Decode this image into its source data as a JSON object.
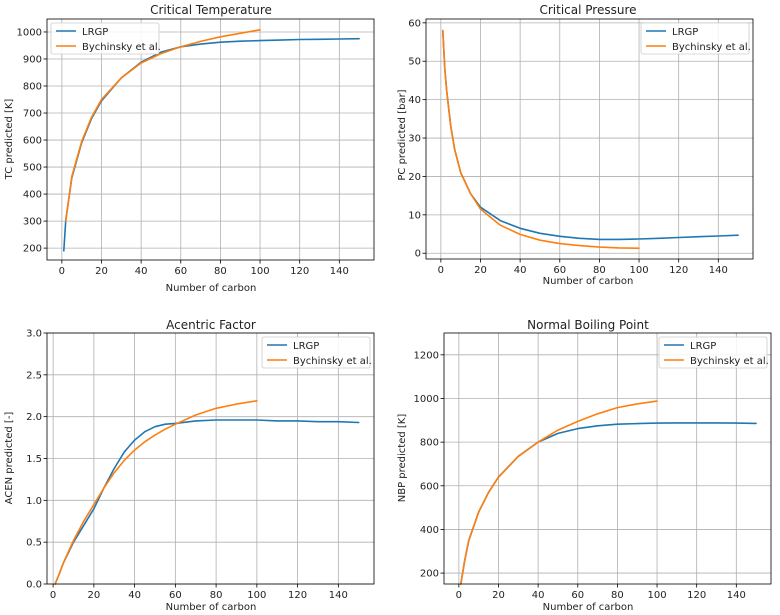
{
  "figure": {
    "title": ""
  },
  "colors": {
    "LRGP": "#1f77b4",
    "Bychinsky et al.": "#ff7f0e",
    "grid": "#b0b0b0",
    "axis": "#000000"
  },
  "chart_data": [
    {
      "id": "tc",
      "type": "line",
      "title": "Critical Temperature",
      "xlabel": "Number of carbon",
      "ylabel": "TC predicted [K]",
      "xlim": [
        -7.5,
        157.5
      ],
      "ylim": [
        156,
        1048
      ],
      "xticks": [
        0,
        20,
        40,
        60,
        80,
        100,
        120,
        140
      ],
      "yticks": [
        200,
        300,
        400,
        500,
        600,
        700,
        800,
        900,
        1000
      ],
      "grid": true,
      "legend": "upper-left",
      "series": [
        {
          "name": "LRGP",
          "x": [
            1,
            2,
            5,
            10,
            15,
            20,
            30,
            40,
            50,
            60,
            70,
            80,
            90,
            100,
            110,
            120,
            130,
            140,
            150
          ],
          "y": [
            190,
            305,
            460,
            590,
            680,
            745,
            830,
            888,
            925,
            945,
            955,
            962,
            966,
            968,
            970,
            972,
            973,
            974,
            975
          ]
        },
        {
          "name": "Bychinsky et al.",
          "x": [
            2,
            5,
            10,
            15,
            20,
            30,
            40,
            50,
            60,
            70,
            80,
            90,
            100
          ],
          "y": [
            300,
            465,
            595,
            685,
            750,
            830,
            885,
            920,
            945,
            965,
            982,
            995,
            1008
          ]
        }
      ]
    },
    {
      "id": "pc",
      "type": "line",
      "title": "Critical Pressure",
      "xlabel": "Number of carbon",
      "ylabel": "PC predicted [bar]",
      "xlim": [
        -7.5,
        157.5
      ],
      "ylim": [
        -1.5,
        61
      ],
      "xticks": [
        0,
        20,
        40,
        60,
        80,
        100,
        120,
        140
      ],
      "yticks": [
        0,
        10,
        20,
        30,
        40,
        50,
        60
      ],
      "grid": true,
      "legend": "upper-right",
      "series": [
        {
          "name": "LRGP",
          "x": [
            1,
            2,
            3,
            5,
            7,
            10,
            15,
            20,
            30,
            40,
            50,
            60,
            70,
            80,
            90,
            100,
            110,
            120,
            130,
            140,
            150
          ],
          "y": [
            58,
            48,
            42,
            33,
            27,
            21,
            15.5,
            12,
            8.5,
            6.5,
            5.2,
            4.4,
            3.9,
            3.6,
            3.6,
            3.7,
            3.9,
            4.1,
            4.3,
            4.5,
            4.7
          ]
        },
        {
          "name": "Bychinsky et al.",
          "x": [
            1,
            2,
            3,
            5,
            7,
            10,
            15,
            20,
            30,
            40,
            50,
            60,
            70,
            80,
            90,
            100
          ],
          "y": [
            58,
            48,
            42,
            33,
            27,
            21,
            15.5,
            11.5,
            7.3,
            4.9,
            3.4,
            2.5,
            2.0,
            1.6,
            1.4,
            1.3
          ]
        }
      ]
    },
    {
      "id": "acen",
      "type": "line",
      "title": "Acentric Factor",
      "xlabel": "Number of carbon",
      "ylabel": "ACEN predicted [-]",
      "xlim": [
        -3,
        157.5
      ],
      "ylim": [
        0,
        3
      ],
      "xticks": [
        0,
        20,
        40,
        60,
        80,
        100,
        120,
        140
      ],
      "yticks": [
        0.0,
        0.5,
        1.0,
        1.5,
        2.0,
        2.5,
        3.0
      ],
      "ytick_labels": [
        "0.0",
        "0.5",
        "1.0",
        "1.5",
        "2.0",
        "2.5",
        "3.0"
      ],
      "grid": true,
      "legend": "upper-right",
      "series": [
        {
          "name": "LRGP",
          "x": [
            1,
            3,
            5,
            10,
            15,
            20,
            25,
            30,
            35,
            40,
            45,
            50,
            55,
            60,
            70,
            80,
            90,
            100,
            110,
            120,
            130,
            140,
            150
          ],
          "y": [
            0.0,
            0.12,
            0.25,
            0.5,
            0.7,
            0.9,
            1.15,
            1.38,
            1.58,
            1.72,
            1.82,
            1.88,
            1.91,
            1.92,
            1.95,
            1.96,
            1.96,
            1.96,
            1.95,
            1.95,
            1.94,
            1.94,
            1.93
          ]
        },
        {
          "name": "Bychinsky et al.",
          "x": [
            1,
            3,
            5,
            10,
            15,
            20,
            25,
            30,
            35,
            40,
            45,
            50,
            55,
            60,
            70,
            80,
            90,
            100
          ],
          "y": [
            0.0,
            0.12,
            0.25,
            0.52,
            0.75,
            0.95,
            1.15,
            1.33,
            1.48,
            1.6,
            1.7,
            1.78,
            1.85,
            1.91,
            2.02,
            2.1,
            2.15,
            2.19
          ]
        }
      ]
    },
    {
      "id": "nbp",
      "type": "line",
      "title": "Normal Boiling Point",
      "xlabel": "Number of carbon",
      "ylabel": "NBP predicted [K]",
      "xlim": [
        -7.5,
        157.5
      ],
      "ylim": [
        150,
        1300
      ],
      "xticks": [
        0,
        20,
        40,
        60,
        80,
        100,
        120,
        140
      ],
      "yticks": [
        200,
        400,
        600,
        800,
        1000,
        1200
      ],
      "grid": true,
      "legend": "upper-right",
      "series": [
        {
          "name": "LRGP",
          "x": [
            1,
            3,
            5,
            10,
            15,
            20,
            30,
            40,
            50,
            60,
            70,
            80,
            90,
            100,
            110,
            120,
            130,
            140,
            150
          ],
          "y": [
            150,
            260,
            350,
            480,
            570,
            640,
            735,
            800,
            840,
            862,
            875,
            882,
            885,
            887,
            888,
            888,
            888,
            887,
            886
          ]
        },
        {
          "name": "Bychinsky et al.",
          "x": [
            1,
            3,
            5,
            10,
            15,
            20,
            30,
            40,
            50,
            60,
            70,
            80,
            90,
            100
          ],
          "y": [
            150,
            260,
            350,
            480,
            570,
            640,
            735,
            800,
            855,
            895,
            930,
            958,
            975,
            988
          ]
        }
      ]
    }
  ]
}
